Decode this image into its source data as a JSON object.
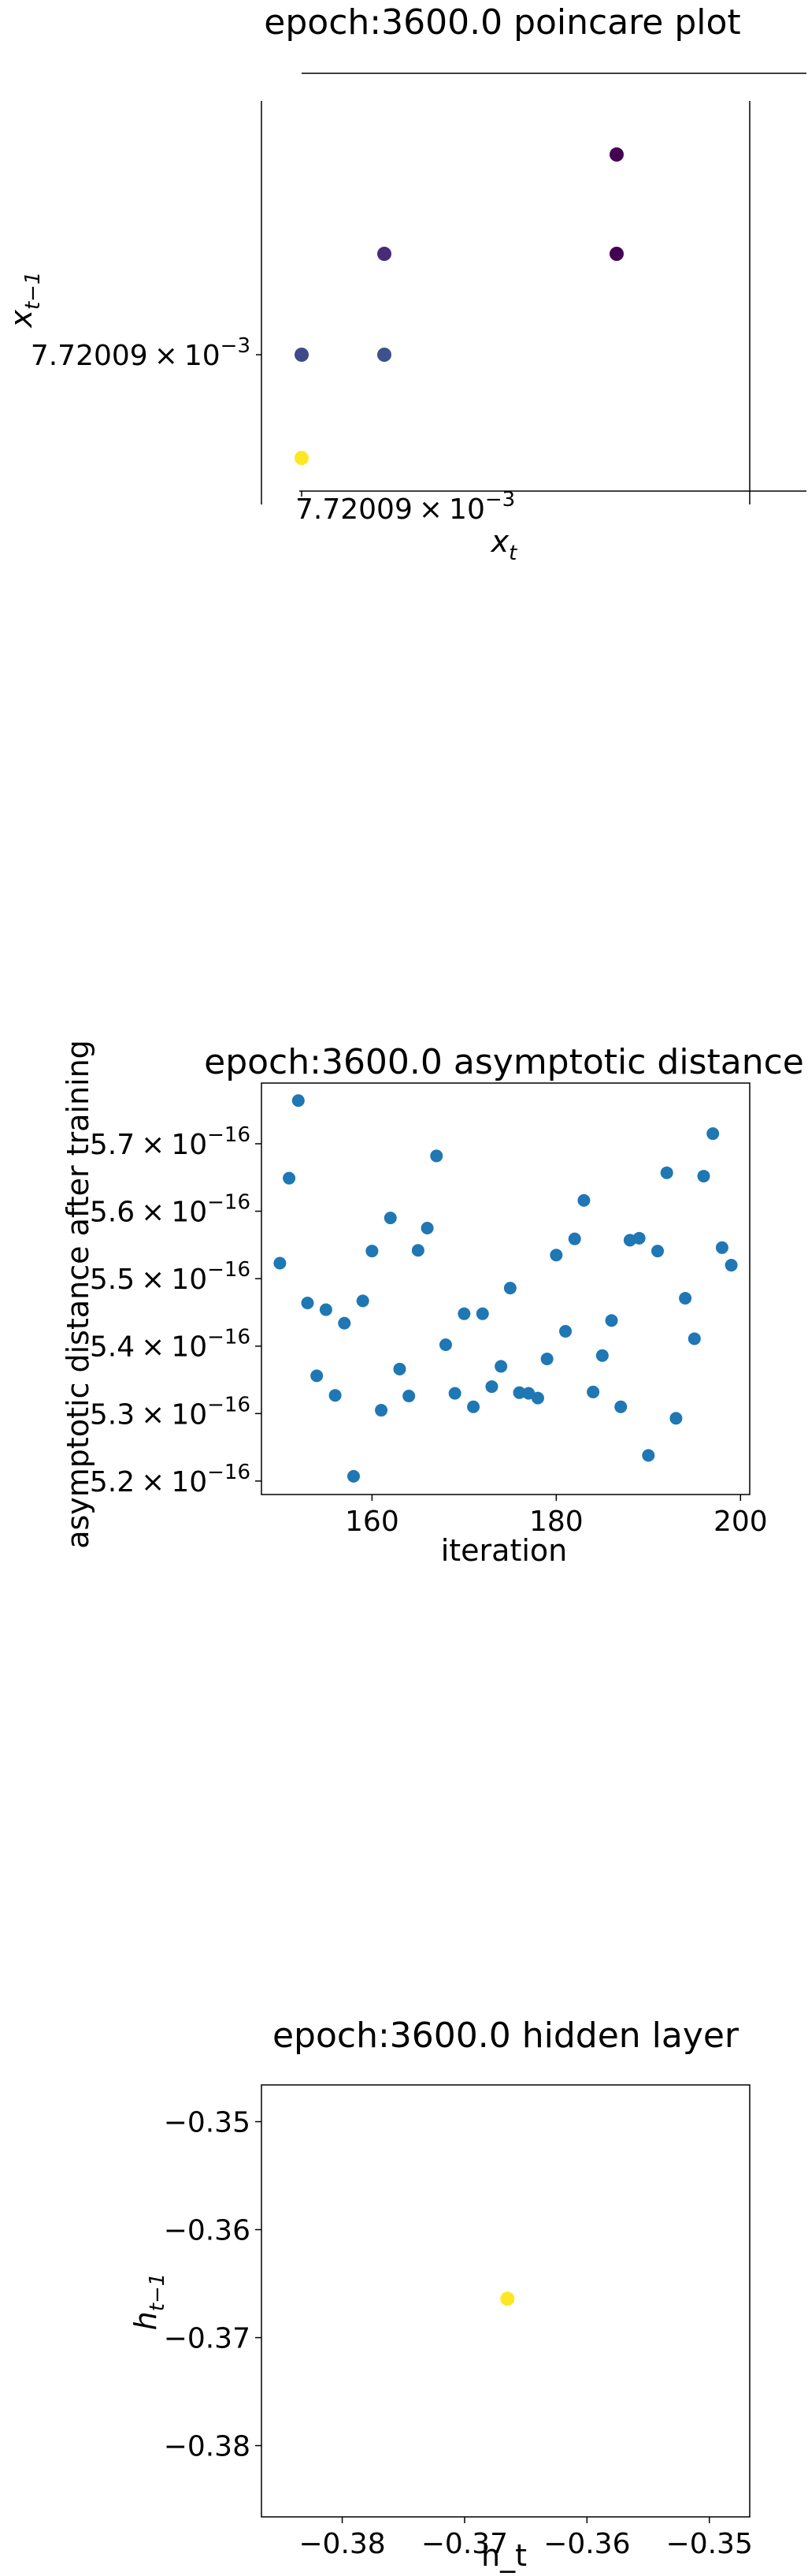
{
  "chart_data": [
    {
      "type": "scatter",
      "title": "epoch:3600.0 poincare plot",
      "xlabel_var": "x",
      "xlabel_sub": "t",
      "ylabel_var": "x",
      "ylabel_sub": "t−1",
      "tick_label": "7.72009",
      "tick_mult": "×",
      "tick_base": "10",
      "tick_exp": "−3",
      "colors": {
        "dark_purple": "#440154",
        "indigo": "#3b528b",
        "yellow": "#fde725"
      },
      "points": [
        {
          "x": 3,
          "y": 4,
          "color": "#440154"
        },
        {
          "x": 3,
          "y": 3,
          "color": "#440154"
        },
        {
          "x": 1,
          "y": 3,
          "color": "#472c7a"
        },
        {
          "x": 1,
          "y": 2,
          "color": "#3b528b"
        },
        {
          "x": 0,
          "y": 2,
          "color": "#3e4a89"
        },
        {
          "x": 0,
          "y": 1,
          "color": "#fde725"
        }
      ]
    },
    {
      "type": "scatter",
      "title": "epoch:3600.0 asymptotic distance",
      "xlabel": "iteration",
      "ylabel": "asymptotic distance after training",
      "color": "#1f77b4",
      "xlim": [
        148,
        201
      ],
      "ylim": [
        5.18,
        5.79
      ],
      "ylim_unit": "1e-16",
      "xticks": [
        160,
        180,
        200
      ],
      "yticks": [
        {
          "value": 5.2,
          "label": "5.2",
          "mult": "×",
          "base": "10",
          "exp": "−16"
        },
        {
          "value": 5.3,
          "label": "5.3",
          "mult": "×",
          "base": "10",
          "exp": "−16"
        },
        {
          "value": 5.4,
          "label": "5.4",
          "mult": "×",
          "base": "10",
          "exp": "−16"
        },
        {
          "value": 5.5,
          "label": "5.5",
          "mult": "×",
          "base": "10",
          "exp": "−16"
        },
        {
          "value": 5.6,
          "label": "5.6",
          "mult": "×",
          "base": "10",
          "exp": "−16"
        },
        {
          "value": 5.7,
          "label": "5.7",
          "mult": "×",
          "base": "10",
          "exp": "−16"
        }
      ],
      "x": [
        150,
        151,
        152,
        153,
        154,
        155,
        156,
        157,
        158,
        159,
        160,
        161,
        162,
        163,
        164,
        165,
        166,
        167,
        168,
        169,
        170,
        171,
        172,
        173,
        174,
        175,
        176,
        177,
        178,
        179,
        180,
        181,
        182,
        183,
        184,
        185,
        186,
        187,
        188,
        189,
        190,
        191,
        192,
        193,
        194,
        195,
        196,
        197,
        198,
        199
      ],
      "y": [
        5.523,
        5.649,
        5.764,
        5.464,
        5.356,
        5.454,
        5.327,
        5.434,
        5.207,
        5.467,
        5.541,
        5.305,
        5.59,
        5.366,
        5.326,
        5.542,
        5.575,
        5.682,
        5.402,
        5.33,
        5.448,
        5.31,
        5.448,
        5.34,
        5.37,
        5.486,
        5.331,
        5.33,
        5.323,
        5.381,
        5.535,
        5.422,
        5.559,
        5.616,
        5.332,
        5.386,
        5.438,
        5.31,
        5.557,
        5.56,
        5.238,
        5.541,
        5.657,
        5.293,
        5.471,
        5.411,
        5.652,
        5.715,
        5.546,
        5.52
      ]
    },
    {
      "type": "scatter",
      "title": "epoch:3600.0 hidden layer",
      "xlabel": "h_t",
      "ylabel_var": "h",
      "ylabel_sub": "t−1",
      "xlim": [
        -0.3866,
        -0.3467
      ],
      "ylim": [
        -0.3866,
        -0.3466
      ],
      "xticks": [
        -0.38,
        -0.37,
        -0.36,
        -0.35
      ],
      "xtick_labels": [
        "−0.38",
        "−0.37",
        "−0.36",
        "−0.35"
      ],
      "yticks": [
        -0.38,
        -0.37,
        -0.36,
        -0.35
      ],
      "ytick_labels": [
        "−0.38",
        "−0.37",
        "−0.36",
        "−0.35"
      ],
      "points": [
        {
          "x": -0.3665,
          "y": -0.3664,
          "color": "#fde725"
        }
      ]
    }
  ]
}
